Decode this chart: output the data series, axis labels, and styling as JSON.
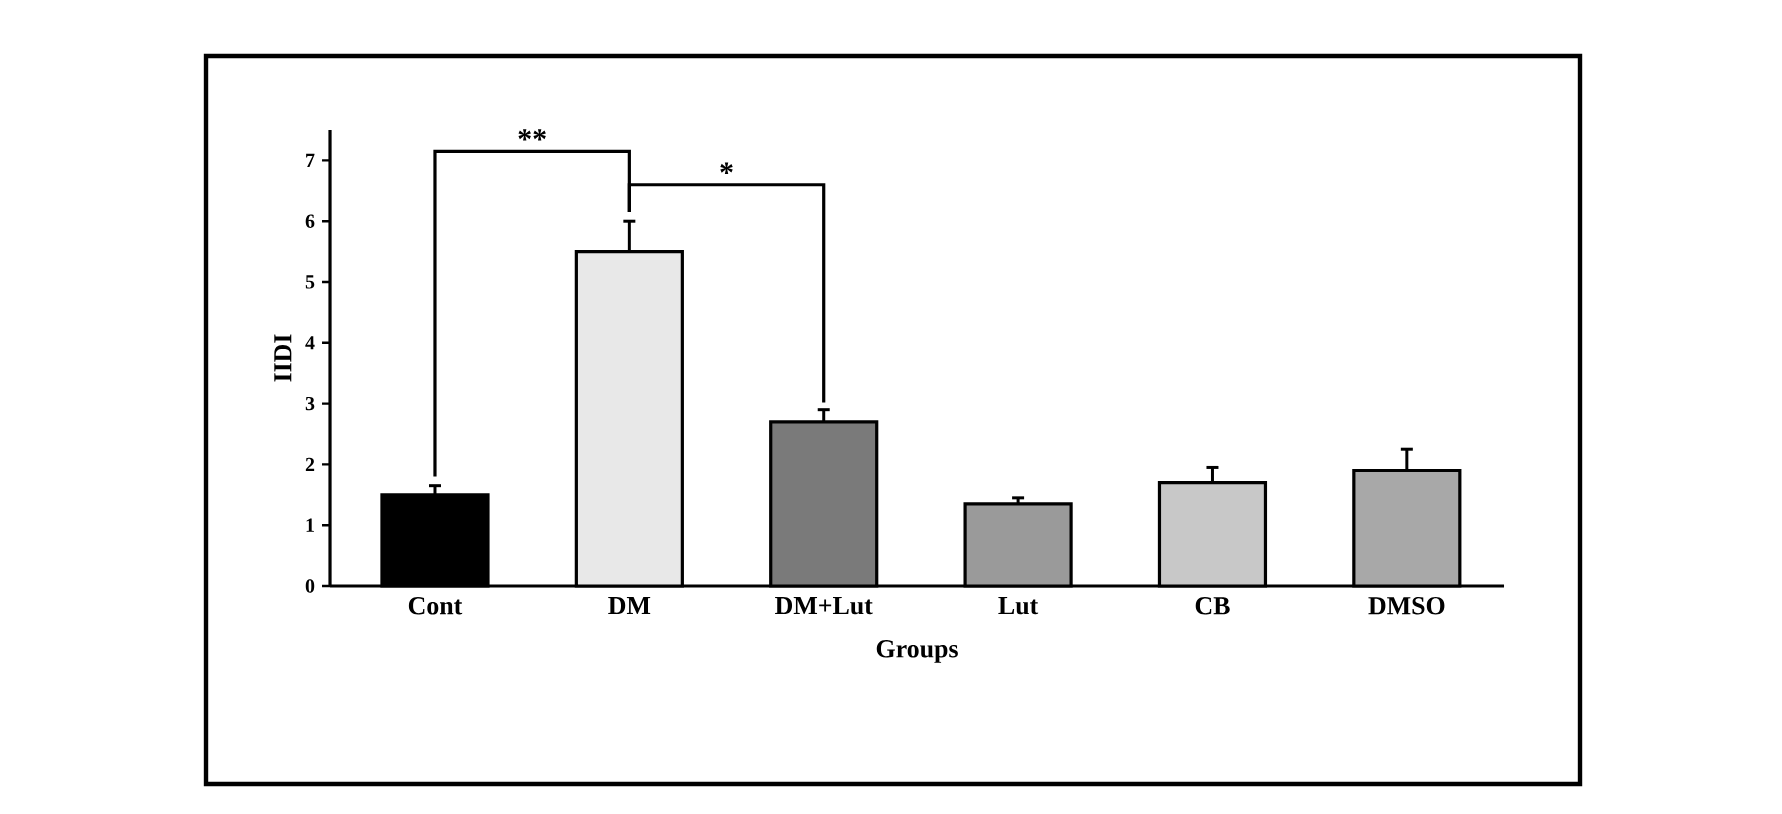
{
  "chart_data": {
    "type": "bar",
    "xlabel": "Groups",
    "ylabel": "IIDI",
    "categories": [
      "Cont",
      "DM",
      "DM+Lut",
      "Lut",
      "CB",
      "DMSO"
    ],
    "values": [
      1.5,
      5.5,
      2.7,
      1.35,
      1.7,
      1.9
    ],
    "errors": [
      0.15,
      0.5,
      0.2,
      0.1,
      0.25,
      0.35
    ],
    "colors": [
      "#000000",
      "#e8e8e8",
      "#7a7a7a",
      "#9a9a9a",
      "#c8c8c8",
      "#a8a8a8"
    ],
    "ylim": [
      0,
      7.5
    ],
    "yticks": [
      0,
      1,
      2,
      3,
      4,
      5,
      6,
      7
    ],
    "annotations": [
      "**",
      "*"
    ]
  }
}
